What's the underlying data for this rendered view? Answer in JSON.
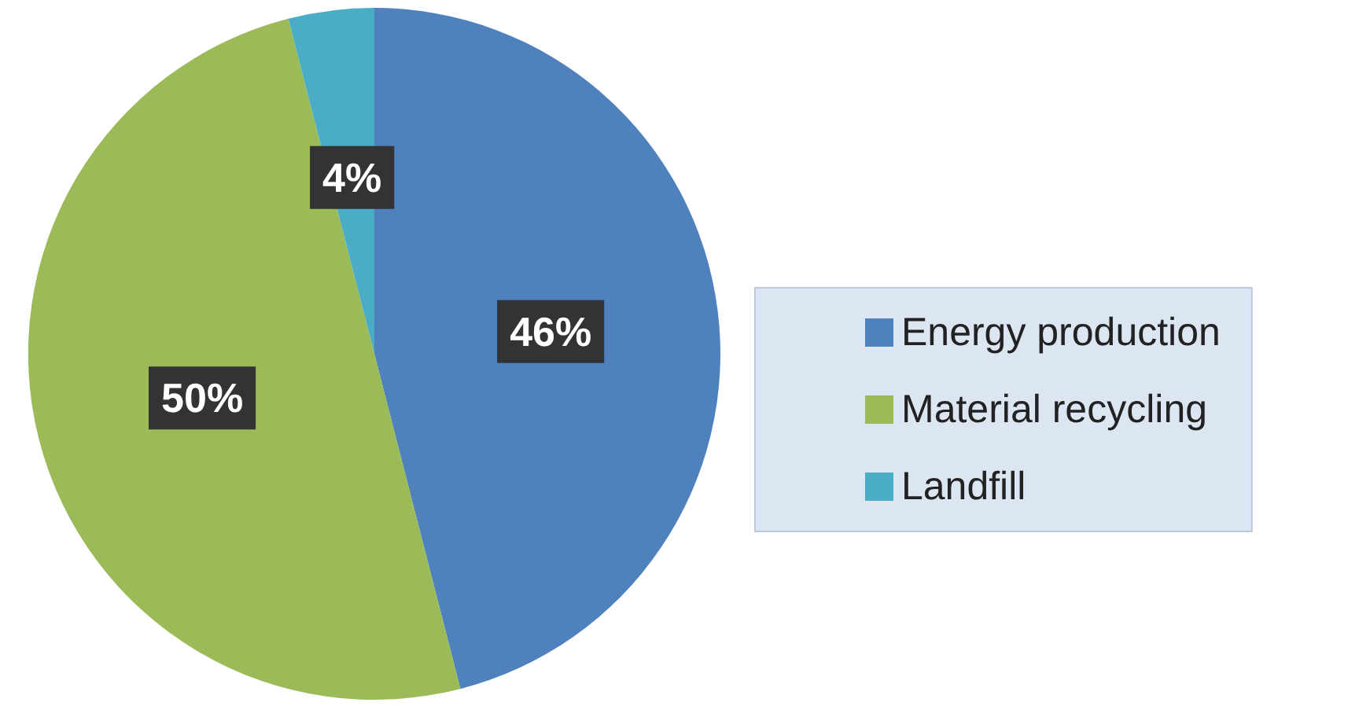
{
  "chart_data": {
    "type": "pie",
    "categories": [
      "Energy production",
      "Material recycling",
      "Landfill"
    ],
    "values": [
      46,
      50,
      4
    ],
    "colors": [
      "#4f81bd",
      "#9bbb59",
      "#4bacc6"
    ],
    "value_labels": [
      "46%",
      "50%",
      "4%"
    ],
    "legend": "right"
  }
}
